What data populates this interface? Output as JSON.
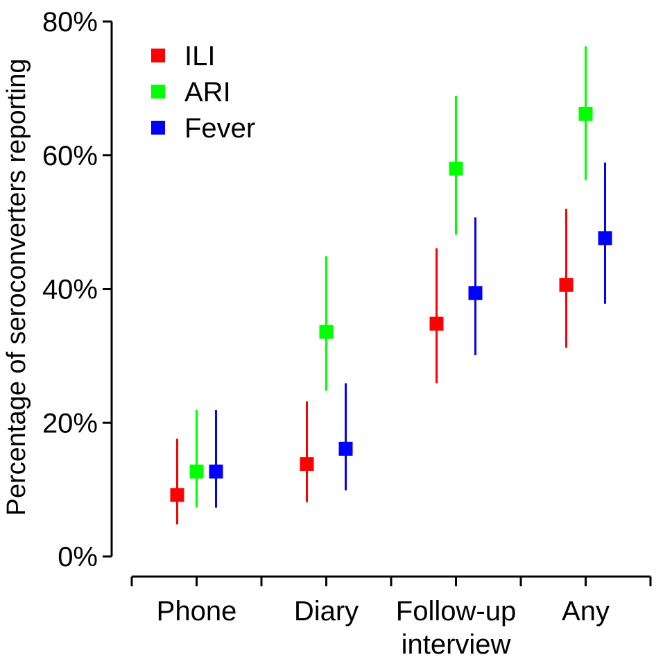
{
  "chart_data": {
    "type": "scatter",
    "title": "",
    "xlabel": "",
    "ylabel": "Percentage of seroconverters reporting",
    "ylim": [
      0,
      80
    ],
    "y_ticks": [
      "0%",
      "20%",
      "40%",
      "60%",
      "80%"
    ],
    "categories": [
      {
        "lines": [
          "Phone"
        ]
      },
      {
        "lines": [
          "Diary"
        ]
      },
      {
        "lines": [
          "Follow-up",
          "interview"
        ]
      },
      {
        "lines": [
          "Any"
        ]
      }
    ],
    "legend_position": "top-left",
    "grid": false,
    "series": [
      {
        "name": "ILI",
        "color": "#ff0000",
        "points": [
          {
            "value": 9.2,
            "lower": 4.8,
            "upper": 17.6
          },
          {
            "value": 13.8,
            "lower": 8.1,
            "upper": 23.2
          },
          {
            "value": 34.8,
            "lower": 25.9,
            "upper": 46.1
          },
          {
            "value": 40.6,
            "lower": 31.2,
            "upper": 52.0
          }
        ]
      },
      {
        "name": "ARI",
        "color": "#00ff00",
        "points": [
          {
            "value": 12.7,
            "lower": 7.3,
            "upper": 21.9
          },
          {
            "value": 33.6,
            "lower": 24.8,
            "upper": 44.9
          },
          {
            "value": 58.0,
            "lower": 48.1,
            "upper": 68.9
          },
          {
            "value": 66.2,
            "lower": 56.3,
            "upper": 76.3
          }
        ]
      },
      {
        "name": "Fever",
        "color": "#0000ff",
        "points": [
          {
            "value": 12.7,
            "lower": 7.3,
            "upper": 21.9
          },
          {
            "value": 16.1,
            "lower": 9.9,
            "upper": 25.9
          },
          {
            "value": 39.4,
            "lower": 30.1,
            "upper": 50.7
          },
          {
            "value": 47.6,
            "lower": 37.8,
            "upper": 58.9
          }
        ]
      }
    ]
  }
}
